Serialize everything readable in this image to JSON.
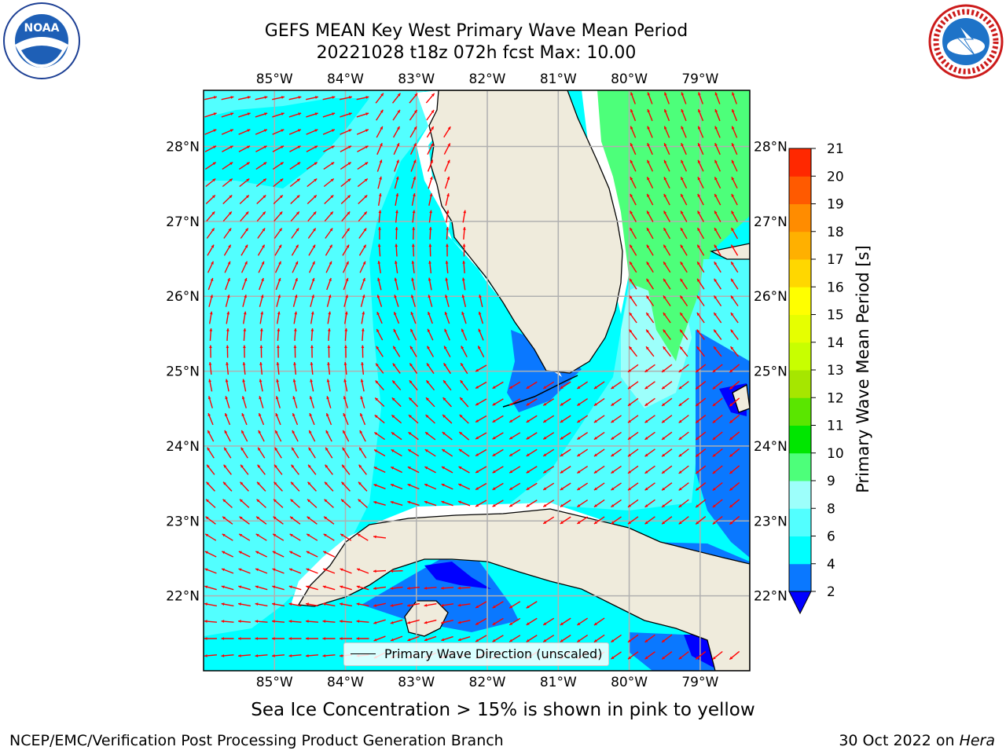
{
  "header": {
    "title_line1": "GEFS MEAN Key West Primary Wave Mean Period",
    "title_line2": "20221028 t18z 072h fcst   Max: 10.00"
  },
  "logos": {
    "left": "NOAA",
    "right": "NATIONAL WEATHER SERVICE"
  },
  "map": {
    "extent": {
      "lon_min": -86.0,
      "lon_max": -78.3,
      "lat_min": 21.0,
      "lat_max": 28.75
    },
    "lon_ticks": [
      {
        "value": -85,
        "label": "85°W"
      },
      {
        "value": -84,
        "label": "84°W"
      },
      {
        "value": -83,
        "label": "83°W"
      },
      {
        "value": -82,
        "label": "82°W"
      },
      {
        "value": -81,
        "label": "81°W"
      },
      {
        "value": -80,
        "label": "80°W"
      },
      {
        "value": -79,
        "label": "79°W"
      }
    ],
    "lat_ticks": [
      {
        "value": 28,
        "label": "28°N"
      },
      {
        "value": 27,
        "label": "27°N"
      },
      {
        "value": 26,
        "label": "26°N"
      },
      {
        "value": 25,
        "label": "25°N"
      },
      {
        "value": 24,
        "label": "24°N"
      },
      {
        "value": 23,
        "label": "23°N"
      },
      {
        "value": 22,
        "label": "22°N"
      }
    ],
    "legend_label": "Primary Wave Direction (unscaled)",
    "colors": {
      "land": "#efebdc",
      "ocean_default": "#00ffff",
      "arrow": "#ff0000",
      "grid": "#b0b0b0"
    }
  },
  "colorbar": {
    "label": "Primary Wave Mean Period [s]",
    "ticks": [
      "2",
      "4",
      "6",
      "8",
      "9",
      "10",
      "11",
      "12",
      "13",
      "14",
      "15",
      "16",
      "17",
      "18",
      "19",
      "20",
      "21"
    ],
    "colors": [
      "#0a78ff",
      "#00ffff",
      "#52ffff",
      "#9dfffb",
      "#4dff7a",
      "#00e600",
      "#5ae600",
      "#a6e600",
      "#c8ff00",
      "#e6ff00",
      "#ffff00",
      "#ffd700",
      "#ffb000",
      "#ff8c00",
      "#ff5a00",
      "#ff2800"
    ],
    "under_color": "#0000ff"
  },
  "note": "Sea Ice Concentration > 15% is shown in pink to yellow",
  "footer": {
    "left": "NCEP/EMC/Verification Post Processing Product Generation Branch",
    "date": "30 Oct 2022 on",
    "host": "Hera"
  }
}
